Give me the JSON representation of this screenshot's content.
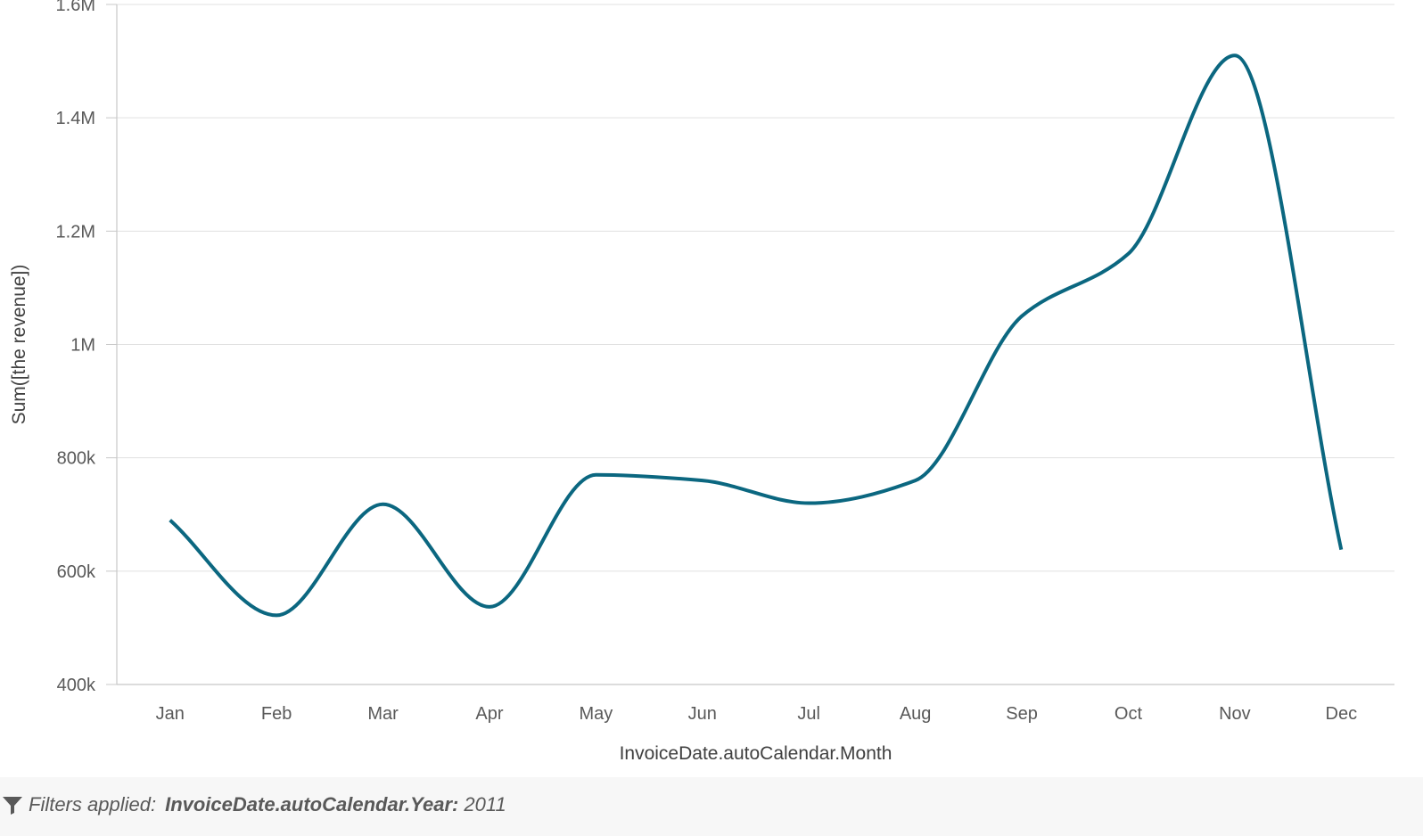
{
  "chart_data": {
    "type": "line",
    "categories": [
      "Jan",
      "Feb",
      "Mar",
      "Apr",
      "May",
      "Jun",
      "Jul",
      "Aug",
      "Sep",
      "Oct",
      "Nov",
      "Dec"
    ],
    "series": [
      {
        "values": [
          690000,
          522000,
          718000,
          537000,
          770000,
          760000,
          720000,
          760000,
          1050000,
          1160000,
          1510000,
          638000
        ]
      }
    ],
    "xlabel": "InvoiceDate.autoCalendar.Month",
    "ylabel": "Sum([the revenue])",
    "ylim": [
      400000,
      1600000
    ],
    "yticks": [
      400000,
      600000,
      800000,
      1000000,
      1200000,
      1400000,
      1600000
    ],
    "ytick_labels": [
      "400k",
      "600k",
      "800k",
      "1M",
      "1.2M",
      "1.4M",
      "1.6M"
    ],
    "grid": true,
    "line_color": "#0b6780",
    "grid_color": "#e0e0e0",
    "axis_color": "#c8c8c8"
  },
  "footer": {
    "icon": "filter-funnel-icon",
    "prefix": "Filters applied:",
    "field": "InvoiceDate.autoCalendar.Year:",
    "value": "2011"
  }
}
